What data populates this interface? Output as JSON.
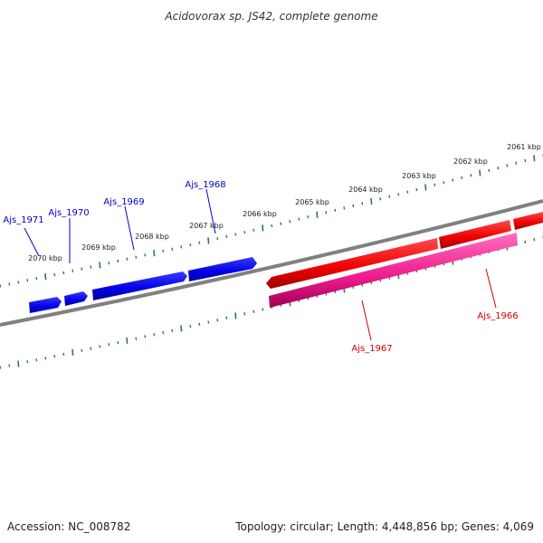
{
  "title": "Acidovorax sp. JS42, complete genome",
  "ruler": {
    "labels": [
      "2061 kbp",
      "2062 kbp",
      "2063 kbp",
      "2064 kbp",
      "2065 kbp",
      "2066 kbp",
      "2067 kbp",
      "2068 kbp",
      "2069 kbp",
      "2070 kbp"
    ]
  },
  "genes": {
    "forward": [
      {
        "label": "Ajs_1971",
        "color": "#0000ff"
      },
      {
        "label": "Ajs_1970",
        "color": "#0000ff"
      },
      {
        "label": "Ajs_1969",
        "color": "#0000ff"
      },
      {
        "label": "Ajs_1968",
        "color": "#0000ff"
      }
    ],
    "reverse": [
      {
        "label": "Ajs_1967",
        "color": "#ff0080"
      },
      {
        "label": "Ajs_1966",
        "color": "#ff0000"
      }
    ]
  },
  "colors": {
    "backbone": "#808080",
    "tick": "#2e7d32",
    "forward_label": "#0000cc",
    "reverse_label": "#cc0000"
  },
  "footer": {
    "accession": "Accession: NC_008782",
    "summary": "Topology: circular; Length: 4,448,856 bp; Genes: 4,069"
  }
}
